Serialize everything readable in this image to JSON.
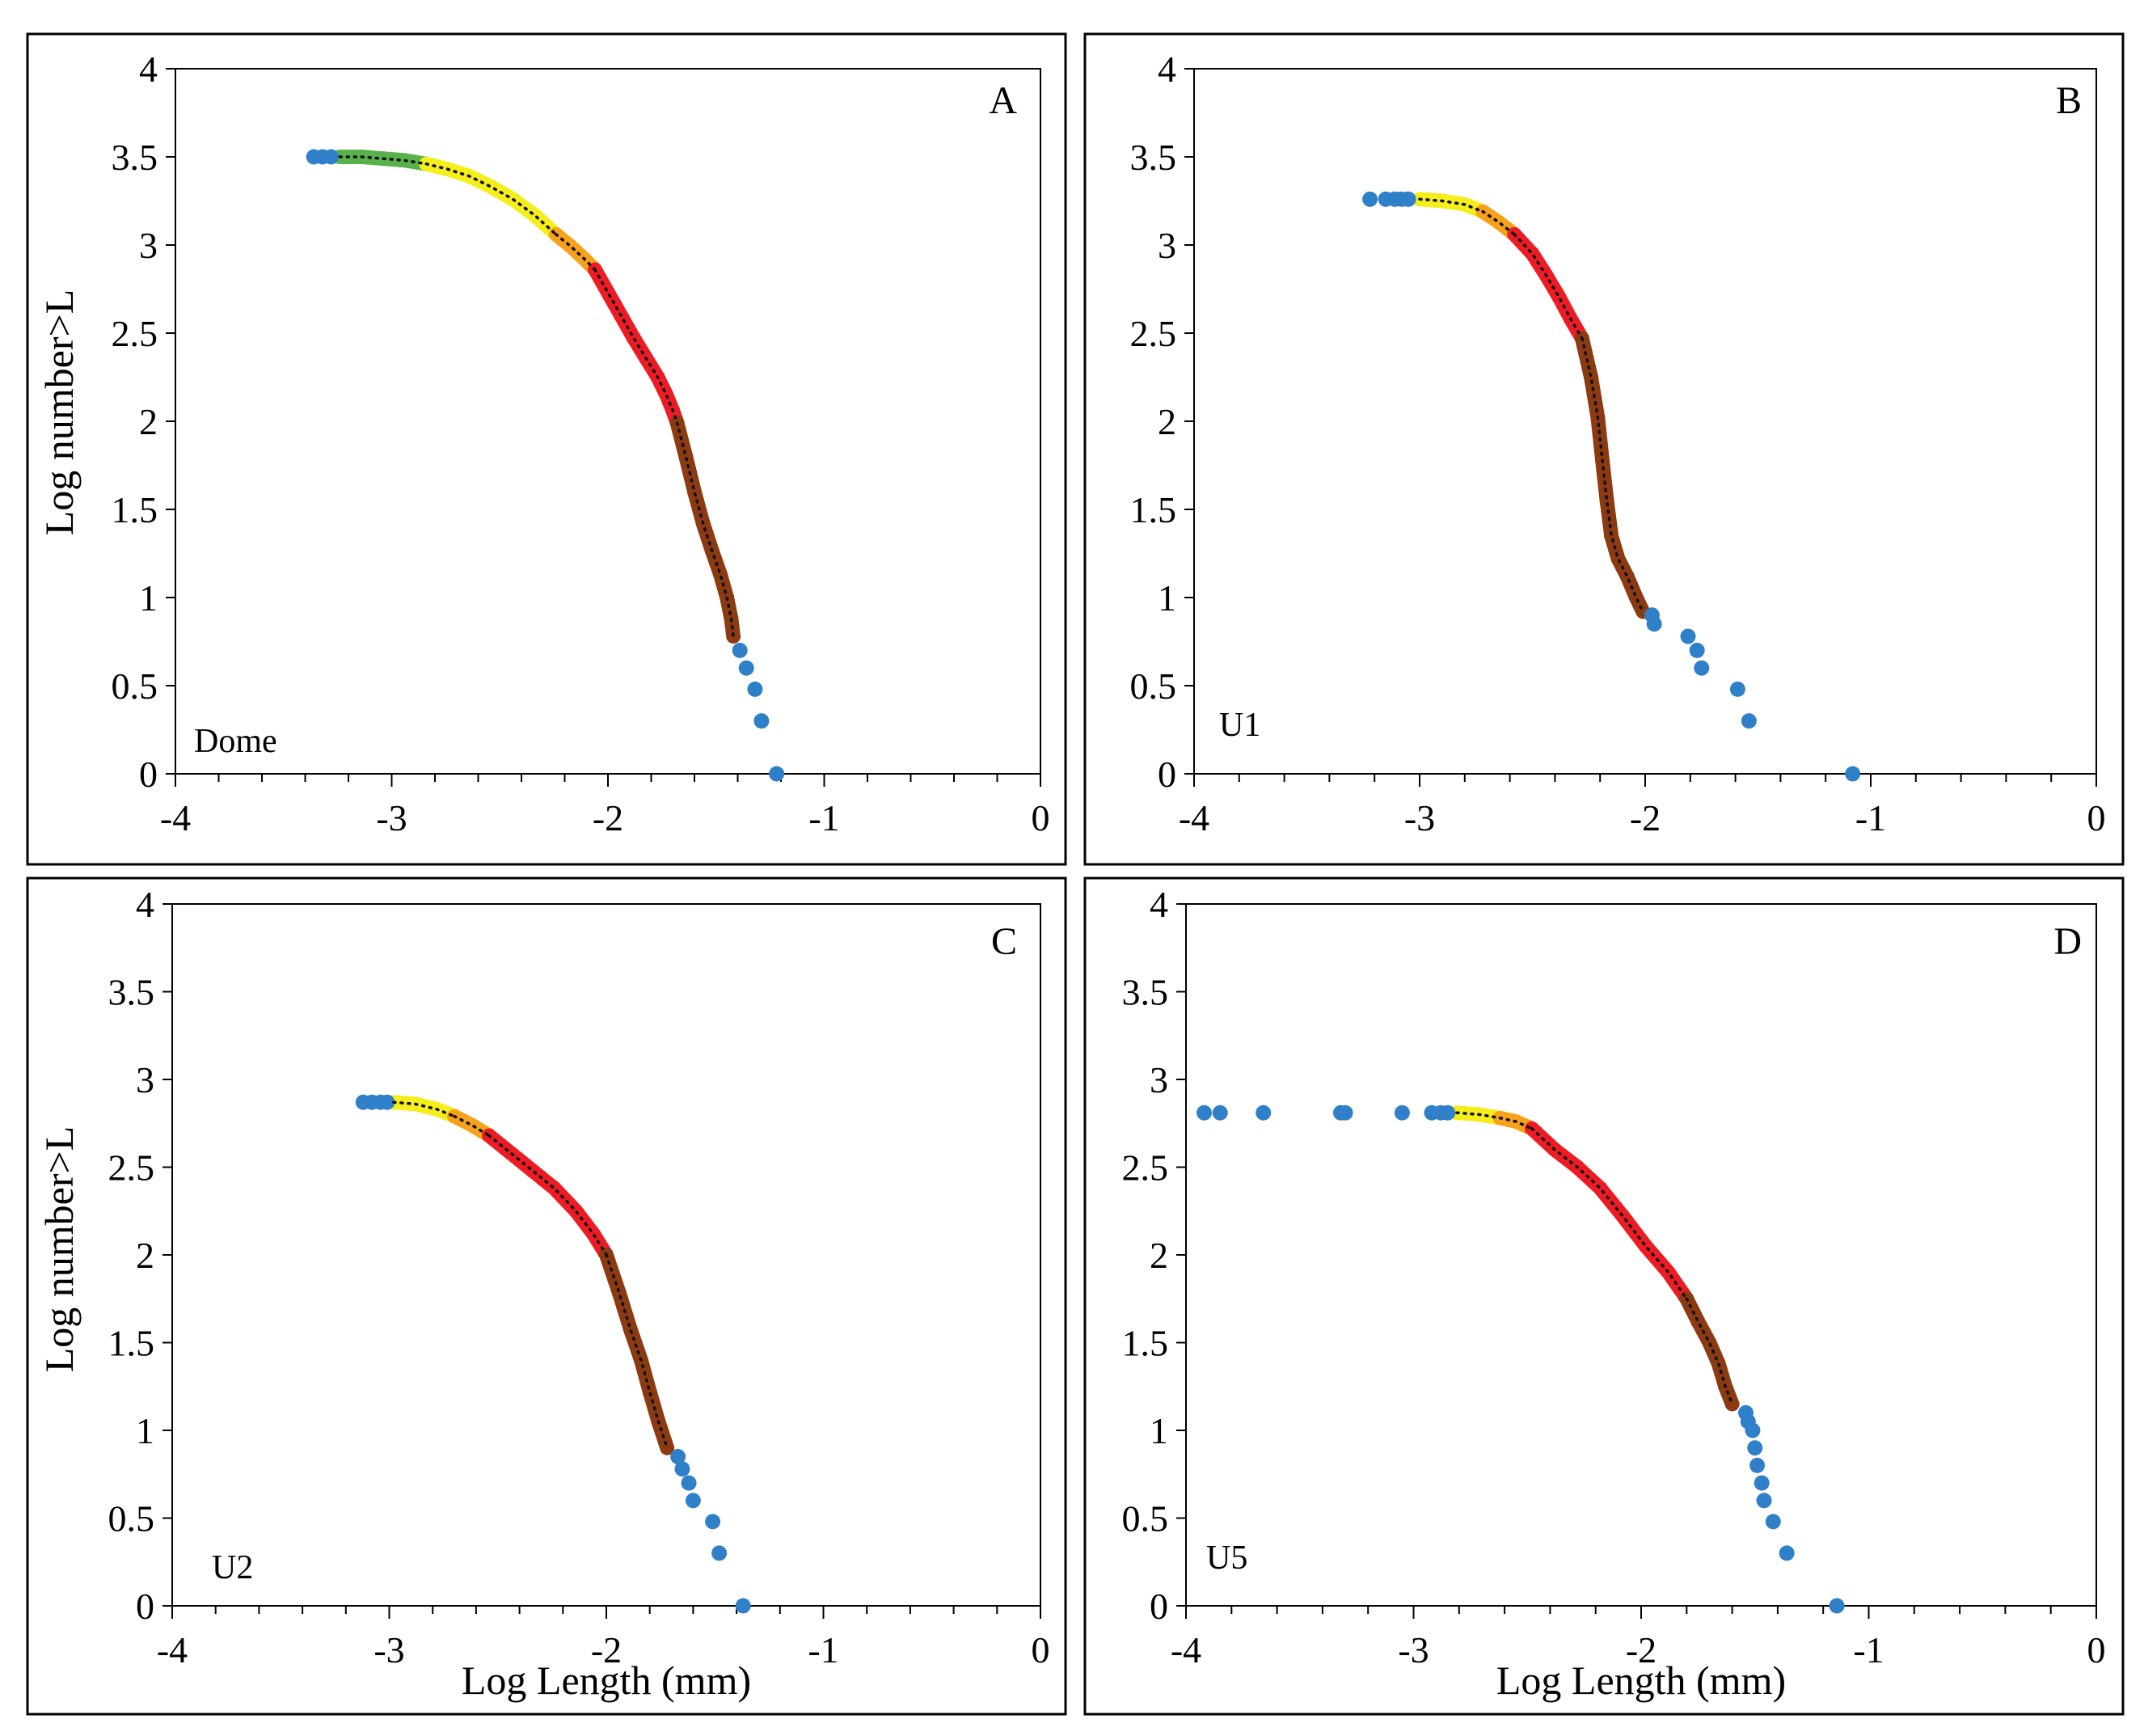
{
  "colors": {
    "blue": "#2f80c8",
    "green": "#58b14a",
    "yellow": "#f4ee1a",
    "orange": "#f7a21a",
    "red": "#ed1c24",
    "brown": "#8b3a12",
    "trend": "#111111"
  },
  "chart_data": [
    {
      "type": "scatter",
      "panel_letter": "A",
      "sample_label": "Dome",
      "title": "",
      "xlabel": "",
      "ylabel": "Log number>L",
      "xlim": [
        -4,
        0
      ],
      "ylim": [
        0,
        4
      ],
      "x_ticks": [
        "-4",
        "-3",
        "-2",
        "-1",
        "0"
      ],
      "y_ticks": [
        "0",
        "0.5",
        "1",
        "1.5",
        "2",
        "2.5",
        "3",
        "3.5",
        "4"
      ],
      "segments": [
        {
          "name": "green",
          "color": "green",
          "x": [
            -3.24,
            -3.14,
            -3.04,
            -2.94,
            -2.84
          ],
          "y": [
            3.5,
            3.5,
            3.49,
            3.48,
            3.46
          ]
        },
        {
          "name": "yellow",
          "color": "yellow",
          "x": [
            -2.84,
            -2.74,
            -2.64,
            -2.54,
            -2.44,
            -2.34,
            -2.24
          ],
          "y": [
            3.46,
            3.43,
            3.39,
            3.33,
            3.26,
            3.17,
            3.06
          ]
        },
        {
          "name": "orange",
          "color": "orange",
          "x": [
            -2.24,
            -2.17,
            -2.1,
            -2.06
          ],
          "y": [
            3.06,
            2.99,
            2.91,
            2.86
          ]
        },
        {
          "name": "red",
          "color": "red",
          "x": [
            -2.06,
            -2.0,
            -1.94,
            -1.88,
            -1.82,
            -1.77,
            -1.73,
            -1.7,
            -1.68
          ],
          "y": [
            2.86,
            2.73,
            2.6,
            2.47,
            2.35,
            2.25,
            2.15,
            2.06,
            1.99
          ]
        },
        {
          "name": "brown",
          "color": "brown",
          "x": [
            -1.68,
            -1.64,
            -1.6,
            -1.56,
            -1.52,
            -1.48,
            -1.45,
            -1.43,
            -1.42
          ],
          "y": [
            1.99,
            1.8,
            1.6,
            1.42,
            1.27,
            1.13,
            1.0,
            0.88,
            0.78
          ]
        }
      ],
      "blue_points": [
        {
          "x": -3.36,
          "y": 3.5
        },
        {
          "x": -3.32,
          "y": 3.5
        },
        {
          "x": -3.28,
          "y": 3.5
        },
        {
          "x": -1.39,
          "y": 0.7
        },
        {
          "x": -1.36,
          "y": 0.6
        },
        {
          "x": -1.32,
          "y": 0.48
        },
        {
          "x": -1.29,
          "y": 0.3
        },
        {
          "x": -1.22,
          "y": 0.0
        }
      ]
    },
    {
      "type": "scatter",
      "panel_letter": "B",
      "sample_label": "U1",
      "title": "",
      "xlabel": "",
      "ylabel": "",
      "xlim": [
        -4,
        0
      ],
      "ylim": [
        0,
        4
      ],
      "x_ticks": [
        "-4",
        "-3",
        "-2",
        "-1",
        "0"
      ],
      "y_ticks": [
        "0",
        "0.5",
        "1",
        "1.5",
        "2",
        "2.5",
        "3",
        "3.5",
        "4"
      ],
      "segments": [
        {
          "name": "yellow",
          "color": "yellow",
          "x": [
            -3.0,
            -2.9,
            -2.8,
            -2.72
          ],
          "y": [
            3.26,
            3.25,
            3.23,
            3.19
          ]
        },
        {
          "name": "orange",
          "color": "orange",
          "x": [
            -2.72,
            -2.65,
            -2.58
          ],
          "y": [
            3.19,
            3.13,
            3.06
          ]
        },
        {
          "name": "red",
          "color": "red",
          "x": [
            -2.58,
            -2.5,
            -2.44,
            -2.38,
            -2.33,
            -2.28
          ],
          "y": [
            3.06,
            2.95,
            2.83,
            2.7,
            2.58,
            2.47
          ]
        },
        {
          "name": "brown",
          "color": "brown",
          "x": [
            -2.28,
            -2.24,
            -2.21,
            -2.19,
            -2.17,
            -2.15,
            -2.12,
            -2.08,
            -2.04,
            -2.01
          ],
          "y": [
            2.47,
            2.25,
            2.02,
            1.78,
            1.55,
            1.35,
            1.22,
            1.12,
            1.0,
            0.92
          ]
        }
      ],
      "blue_points": [
        {
          "x": -3.22,
          "y": 3.26
        },
        {
          "x": -3.15,
          "y": 3.26
        },
        {
          "x": -3.11,
          "y": 3.26
        },
        {
          "x": -3.08,
          "y": 3.26
        },
        {
          "x": -3.05,
          "y": 3.26
        },
        {
          "x": -1.97,
          "y": 0.9
        },
        {
          "x": -1.96,
          "y": 0.85
        },
        {
          "x": -1.81,
          "y": 0.78
        },
        {
          "x": -1.77,
          "y": 0.7
        },
        {
          "x": -1.75,
          "y": 0.6
        },
        {
          "x": -1.59,
          "y": 0.48
        },
        {
          "x": -1.54,
          "y": 0.3
        },
        {
          "x": -1.08,
          "y": 0.0
        }
      ]
    },
    {
      "type": "scatter",
      "panel_letter": "C",
      "sample_label": "U2",
      "title": "",
      "xlabel": "Log Length (mm)",
      "ylabel": "Log number>L",
      "xlim": [
        -4,
        0
      ],
      "ylim": [
        0,
        4
      ],
      "x_ticks": [
        "-4",
        "-3",
        "-2",
        "-1",
        "0"
      ],
      "y_ticks": [
        "0",
        "0.5",
        "1",
        "1.5",
        "2",
        "2.5",
        "3",
        "3.5",
        "4"
      ],
      "segments": [
        {
          "name": "yellow",
          "color": "yellow",
          "x": [
            -2.98,
            -2.88,
            -2.78,
            -2.7
          ],
          "y": [
            2.87,
            2.86,
            2.83,
            2.79
          ]
        },
        {
          "name": "orange",
          "color": "orange",
          "x": [
            -2.7,
            -2.62,
            -2.54
          ],
          "y": [
            2.79,
            2.74,
            2.68
          ]
        },
        {
          "name": "red",
          "color": "red",
          "x": [
            -2.54,
            -2.44,
            -2.34,
            -2.24,
            -2.14,
            -2.06,
            -2.0
          ],
          "y": [
            2.68,
            2.58,
            2.48,
            2.38,
            2.25,
            2.12,
            2.0
          ]
        },
        {
          "name": "brown",
          "color": "brown",
          "x": [
            -2.0,
            -1.94,
            -1.89,
            -1.84,
            -1.8,
            -1.76,
            -1.72
          ],
          "y": [
            2.0,
            1.78,
            1.58,
            1.4,
            1.22,
            1.05,
            0.9
          ]
        }
      ],
      "blue_points": [
        {
          "x": -3.12,
          "y": 2.87
        },
        {
          "x": -3.08,
          "y": 2.87
        },
        {
          "x": -3.04,
          "y": 2.87
        },
        {
          "x": -3.01,
          "y": 2.87
        },
        {
          "x": -1.67,
          "y": 0.85
        },
        {
          "x": -1.65,
          "y": 0.78
        },
        {
          "x": -1.62,
          "y": 0.7
        },
        {
          "x": -1.6,
          "y": 0.6
        },
        {
          "x": -1.51,
          "y": 0.48
        },
        {
          "x": -1.48,
          "y": 0.3
        },
        {
          "x": -1.37,
          "y": 0.0
        }
      ]
    },
    {
      "type": "scatter",
      "panel_letter": "D",
      "sample_label": "U5",
      "title": "",
      "xlabel": "Log Length (mm)",
      "ylabel": "",
      "xlim": [
        -4,
        0
      ],
      "ylim": [
        0,
        4
      ],
      "x_ticks": [
        "-4",
        "-3",
        "-2",
        "-1",
        "0"
      ],
      "y_ticks": [
        "0",
        "0.5",
        "1",
        "1.5",
        "2",
        "2.5",
        "3",
        "3.5",
        "4"
      ],
      "segments": [
        {
          "name": "yellow",
          "color": "yellow",
          "x": [
            -2.81,
            -2.71,
            -2.62
          ],
          "y": [
            2.81,
            2.8,
            2.78
          ]
        },
        {
          "name": "orange",
          "color": "orange",
          "x": [
            -2.62,
            -2.55,
            -2.48
          ],
          "y": [
            2.78,
            2.76,
            2.72
          ]
        },
        {
          "name": "red",
          "color": "red",
          "x": [
            -2.48,
            -2.38,
            -2.28,
            -2.18,
            -2.08,
            -1.98,
            -1.88,
            -1.8
          ],
          "y": [
            2.72,
            2.6,
            2.5,
            2.38,
            2.22,
            2.05,
            1.9,
            1.75
          ]
        },
        {
          "name": "brown",
          "color": "brown",
          "x": [
            -1.8,
            -1.75,
            -1.7,
            -1.66,
            -1.63,
            -1.6
          ],
          "y": [
            1.75,
            1.62,
            1.5,
            1.38,
            1.25,
            1.15
          ]
        }
      ],
      "blue_points": [
        {
          "x": -3.92,
          "y": 2.81
        },
        {
          "x": -3.85,
          "y": 2.81
        },
        {
          "x": -3.66,
          "y": 2.81
        },
        {
          "x": -3.32,
          "y": 2.81
        },
        {
          "x": -3.3,
          "y": 2.81
        },
        {
          "x": -3.05,
          "y": 2.81
        },
        {
          "x": -2.92,
          "y": 2.81
        },
        {
          "x": -2.88,
          "y": 2.81
        },
        {
          "x": -2.85,
          "y": 2.81
        },
        {
          "x": -1.54,
          "y": 1.1
        },
        {
          "x": -1.53,
          "y": 1.05
        },
        {
          "x": -1.51,
          "y": 1.0
        },
        {
          "x": -1.5,
          "y": 0.9
        },
        {
          "x": -1.49,
          "y": 0.8
        },
        {
          "x": -1.47,
          "y": 0.7
        },
        {
          "x": -1.46,
          "y": 0.6
        },
        {
          "x": -1.42,
          "y": 0.48
        },
        {
          "x": -1.36,
          "y": 0.3
        },
        {
          "x": -1.14,
          "y": 0.0
        }
      ]
    }
  ]
}
